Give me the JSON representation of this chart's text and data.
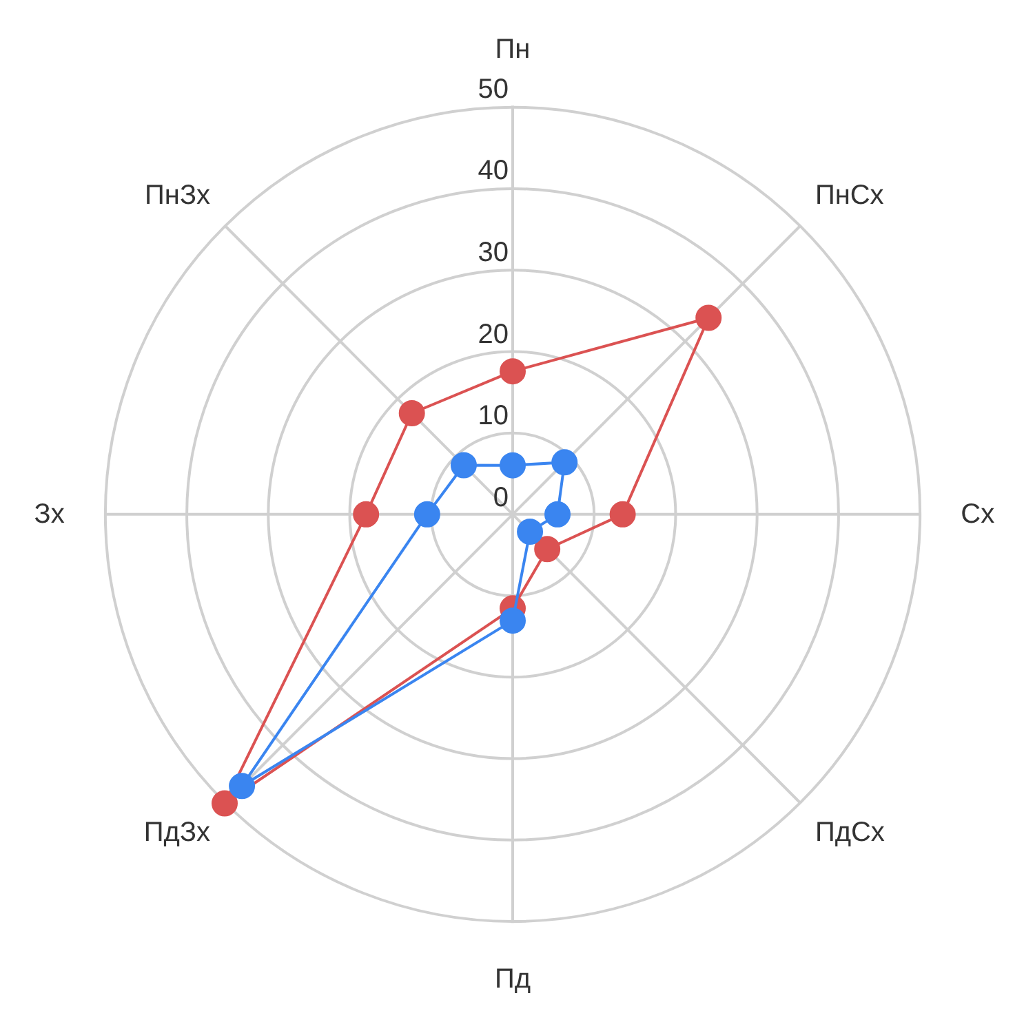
{
  "chart_data": {
    "type": "radar",
    "categories": [
      "Пн",
      "ПнСх",
      "Сх",
      "ПдСх",
      "Пд",
      "ПдЗх",
      "Зх",
      "ПнЗх"
    ],
    "ylim": [
      0,
      50
    ],
    "yticks": [
      0,
      10,
      20,
      30,
      40,
      50
    ],
    "grid": true,
    "marker": "circle",
    "series": [
      {
        "color": "#db5252",
        "values": [
          17.5,
          34,
          13.5,
          6,
          11.5,
          50,
          18,
          17.5
        ]
      },
      {
        "color": "#3a85f0",
        "values": [
          6,
          9,
          5.5,
          3,
          13,
          47,
          10.5,
          8.5
        ]
      }
    ]
  }
}
